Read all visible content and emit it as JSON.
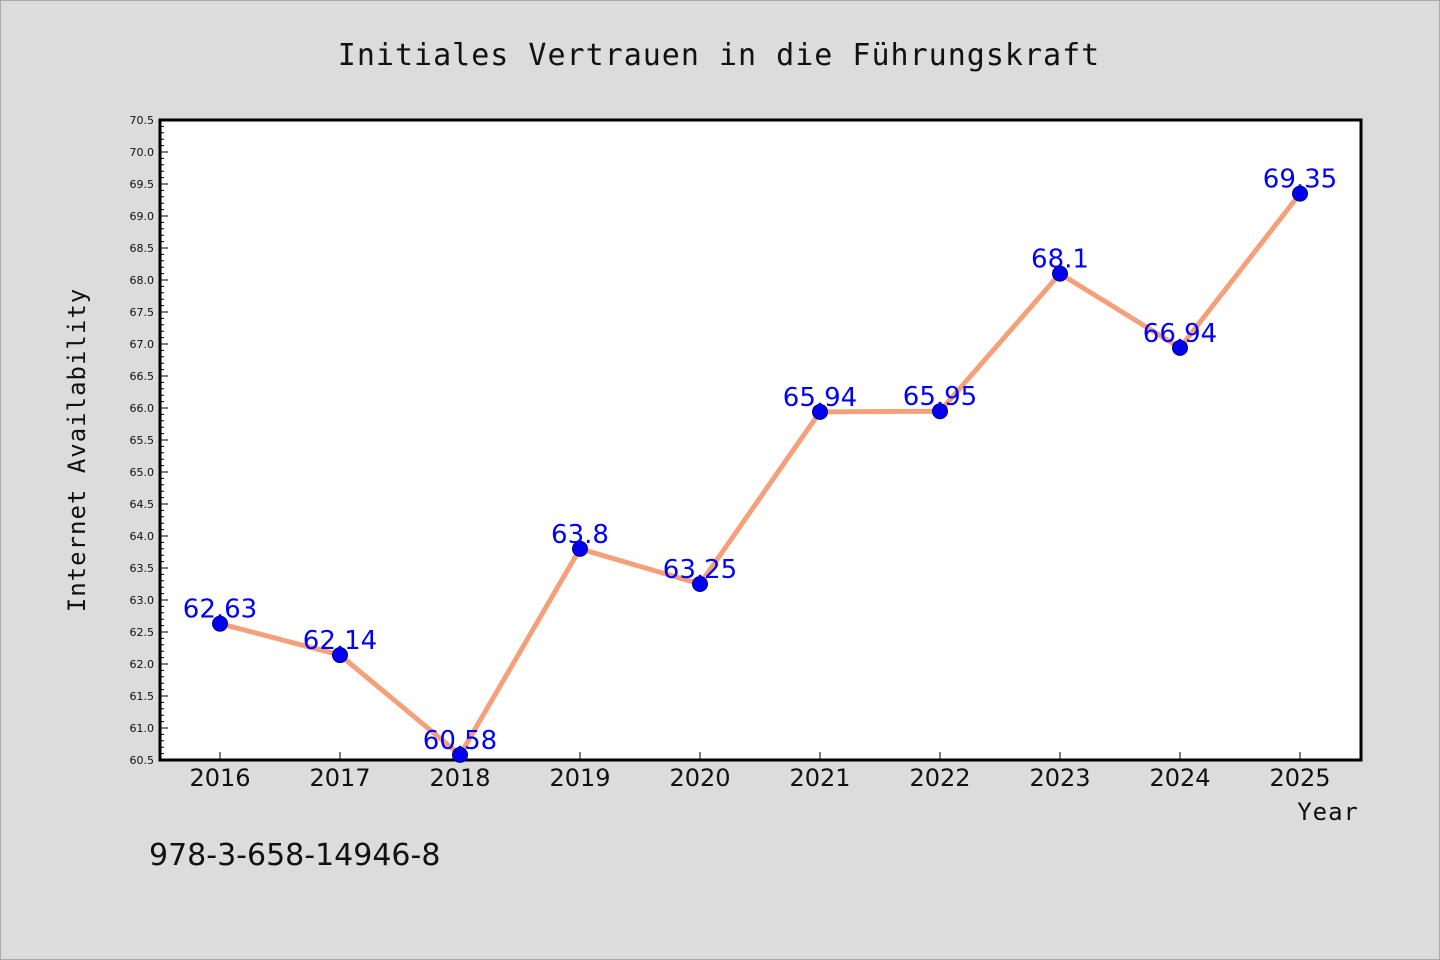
{
  "chart_data": {
    "type": "line",
    "title": "Initiales Vertrauen in die Führungskraft",
    "xlabel": "Year",
    "ylabel": "Internet Availability",
    "categories": [
      "2016",
      "2017",
      "2018",
      "2019",
      "2020",
      "2021",
      "2022",
      "2023",
      "2024",
      "2025"
    ],
    "series": [
      {
        "values": [
          62.63,
          62.14,
          60.58,
          63.8,
          63.25,
          65.94,
          65.95,
          68.1,
          66.94,
          69.35
        ],
        "data_labels": [
          "62.63",
          "62.14",
          "60.58",
          "63.8",
          "63.25",
          "65.94",
          "65.95",
          "68.1",
          "66.94",
          "69.35"
        ]
      }
    ],
    "ylim": [
      60.5,
      70.5
    ],
    "y_ticks": [
      "60.5",
      "61.0",
      "61.5",
      "62.0",
      "62.5",
      "63.0",
      "63.5",
      "64.0",
      "64.5",
      "65.0",
      "65.5",
      "66.0",
      "66.5",
      "67.0",
      "67.5",
      "68.0",
      "68.5",
      "69.0",
      "69.5",
      "70.0",
      "70.5"
    ],
    "grid": false,
    "legend": "none",
    "colors": {
      "line": "#f4a07a",
      "marker": "#0000ee",
      "data_label": "#0000ff",
      "figure_background": "#dcdcdc",
      "plot_background": "#ffffff"
    }
  },
  "annotation": {
    "isbn": "978-3-658-14946-8"
  }
}
